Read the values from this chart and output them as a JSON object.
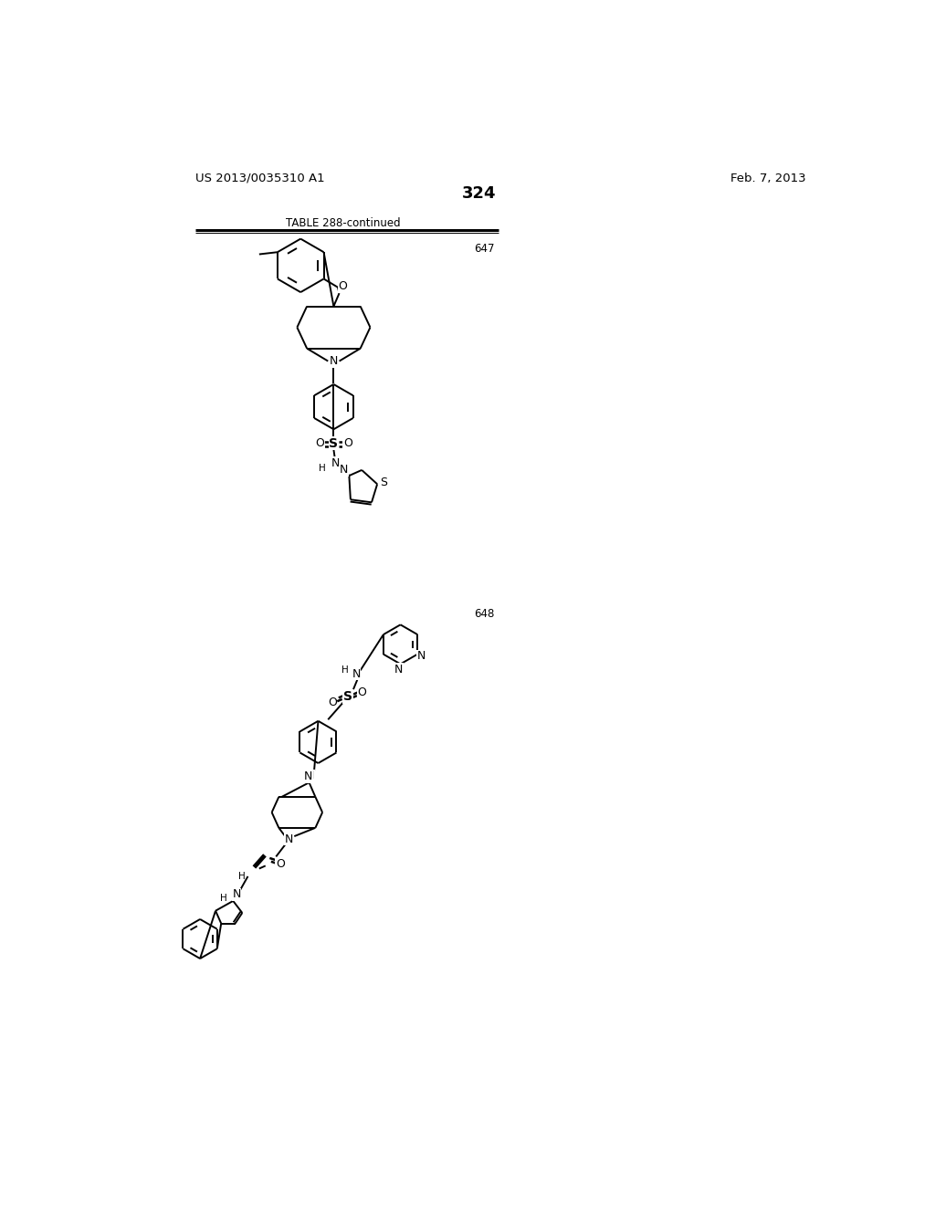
{
  "page_number": "324",
  "patent_number": "US 2013/0035310 A1",
  "patent_date": "Feb. 7, 2013",
  "table_label": "TABLE 288-continued",
  "compound_647_label": "647",
  "compound_648_label": "648",
  "background_color": "#ffffff",
  "line_width": 1.4,
  "font_size_header": 9.5,
  "font_size_page": 13,
  "font_size_label": 8.5,
  "font_size_atom": 8.5,
  "font_size_small": 7.5
}
